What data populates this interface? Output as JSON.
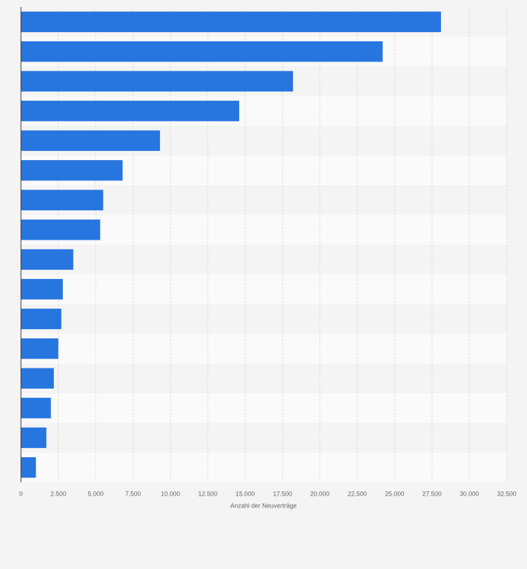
{
  "chart_data": {
    "type": "bar",
    "orientation": "horizontal",
    "x_label": "Anzahl der Neuverträge",
    "categories": [
      null,
      null,
      null,
      null,
      null,
      null,
      null,
      null,
      null,
      null,
      null,
      null,
      null,
      null,
      null,
      null
    ],
    "values": [
      28100,
      24200,
      18200,
      14600,
      9300,
      6800,
      5500,
      5300,
      3500,
      2800,
      2700,
      2500,
      2200,
      2000,
      1700,
      1000
    ],
    "color": "#2775df",
    "xlim": [
      0,
      32500
    ],
    "xticks": [
      0,
      {
        "value": 2500,
        "label": "2.500"
      },
      {
        "value": 5000,
        "label": "5.000"
      },
      {
        "value": 7500,
        "label": "7.500"
      },
      {
        "value": 10000,
        "label": "10.000"
      },
      {
        "value": 12500,
        "label": "12.500"
      },
      {
        "value": 15000,
        "label": "15.000"
      },
      {
        "value": 17500,
        "label": "17.500"
      },
      {
        "value": 20000,
        "label": "20.000"
      },
      {
        "value": 22500,
        "label": "22.500"
      },
      {
        "value": 25000,
        "label": "25.000"
      },
      {
        "value": 27500,
        "label": "27.500"
      },
      {
        "value": 30000,
        "label": "30.000"
      },
      {
        "value": 32500,
        "label": "32.500"
      }
    ],
    "grid": true
  }
}
